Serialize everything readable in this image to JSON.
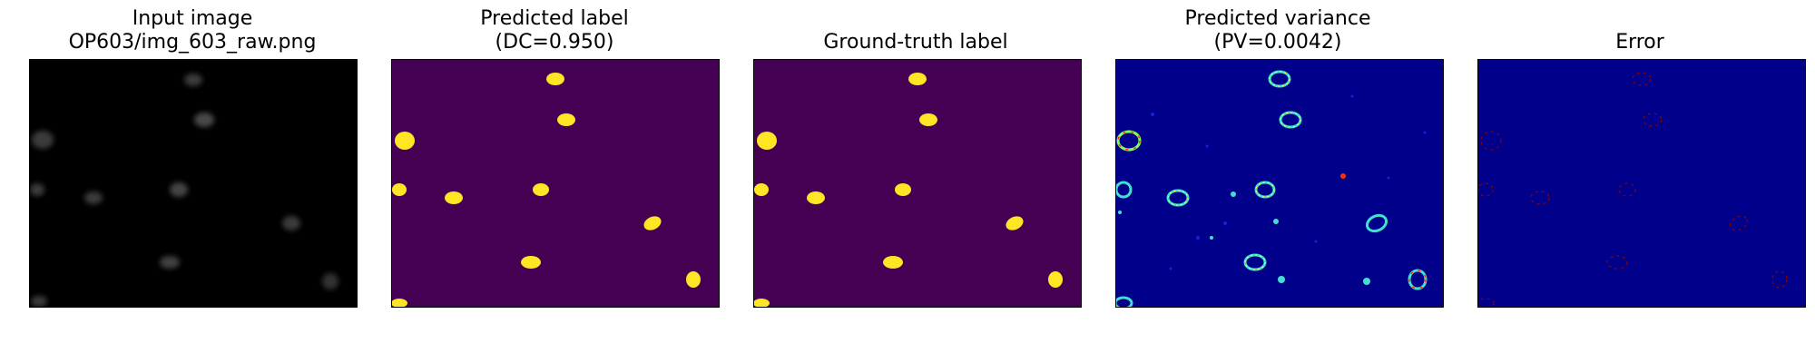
{
  "panels": [
    {
      "title_line1": "Input image",
      "title_line2": "OP603/img_603_raw.png",
      "colors": {
        "background": "#000000",
        "blob": "#4a4a4a"
      }
    },
    {
      "title_line1": "Predicted label",
      "title_line2": "(DC=0.950)",
      "colors": {
        "background": "#440154",
        "blob": "#fde725"
      }
    },
    {
      "title_line1": "",
      "title_line2": "Ground-truth label",
      "colors": {
        "background": "#440154",
        "blob": "#fde725"
      }
    },
    {
      "title_line1": "Predicted variance",
      "title_line2": "(PV=0.0042)",
      "colors": {
        "background": "#00008b",
        "ring": "#40e0d0"
      }
    },
    {
      "title_line1": "",
      "title_line2": "Error",
      "colors": {
        "background": "#00008b",
        "mark": "#8b0000"
      }
    }
  ]
}
